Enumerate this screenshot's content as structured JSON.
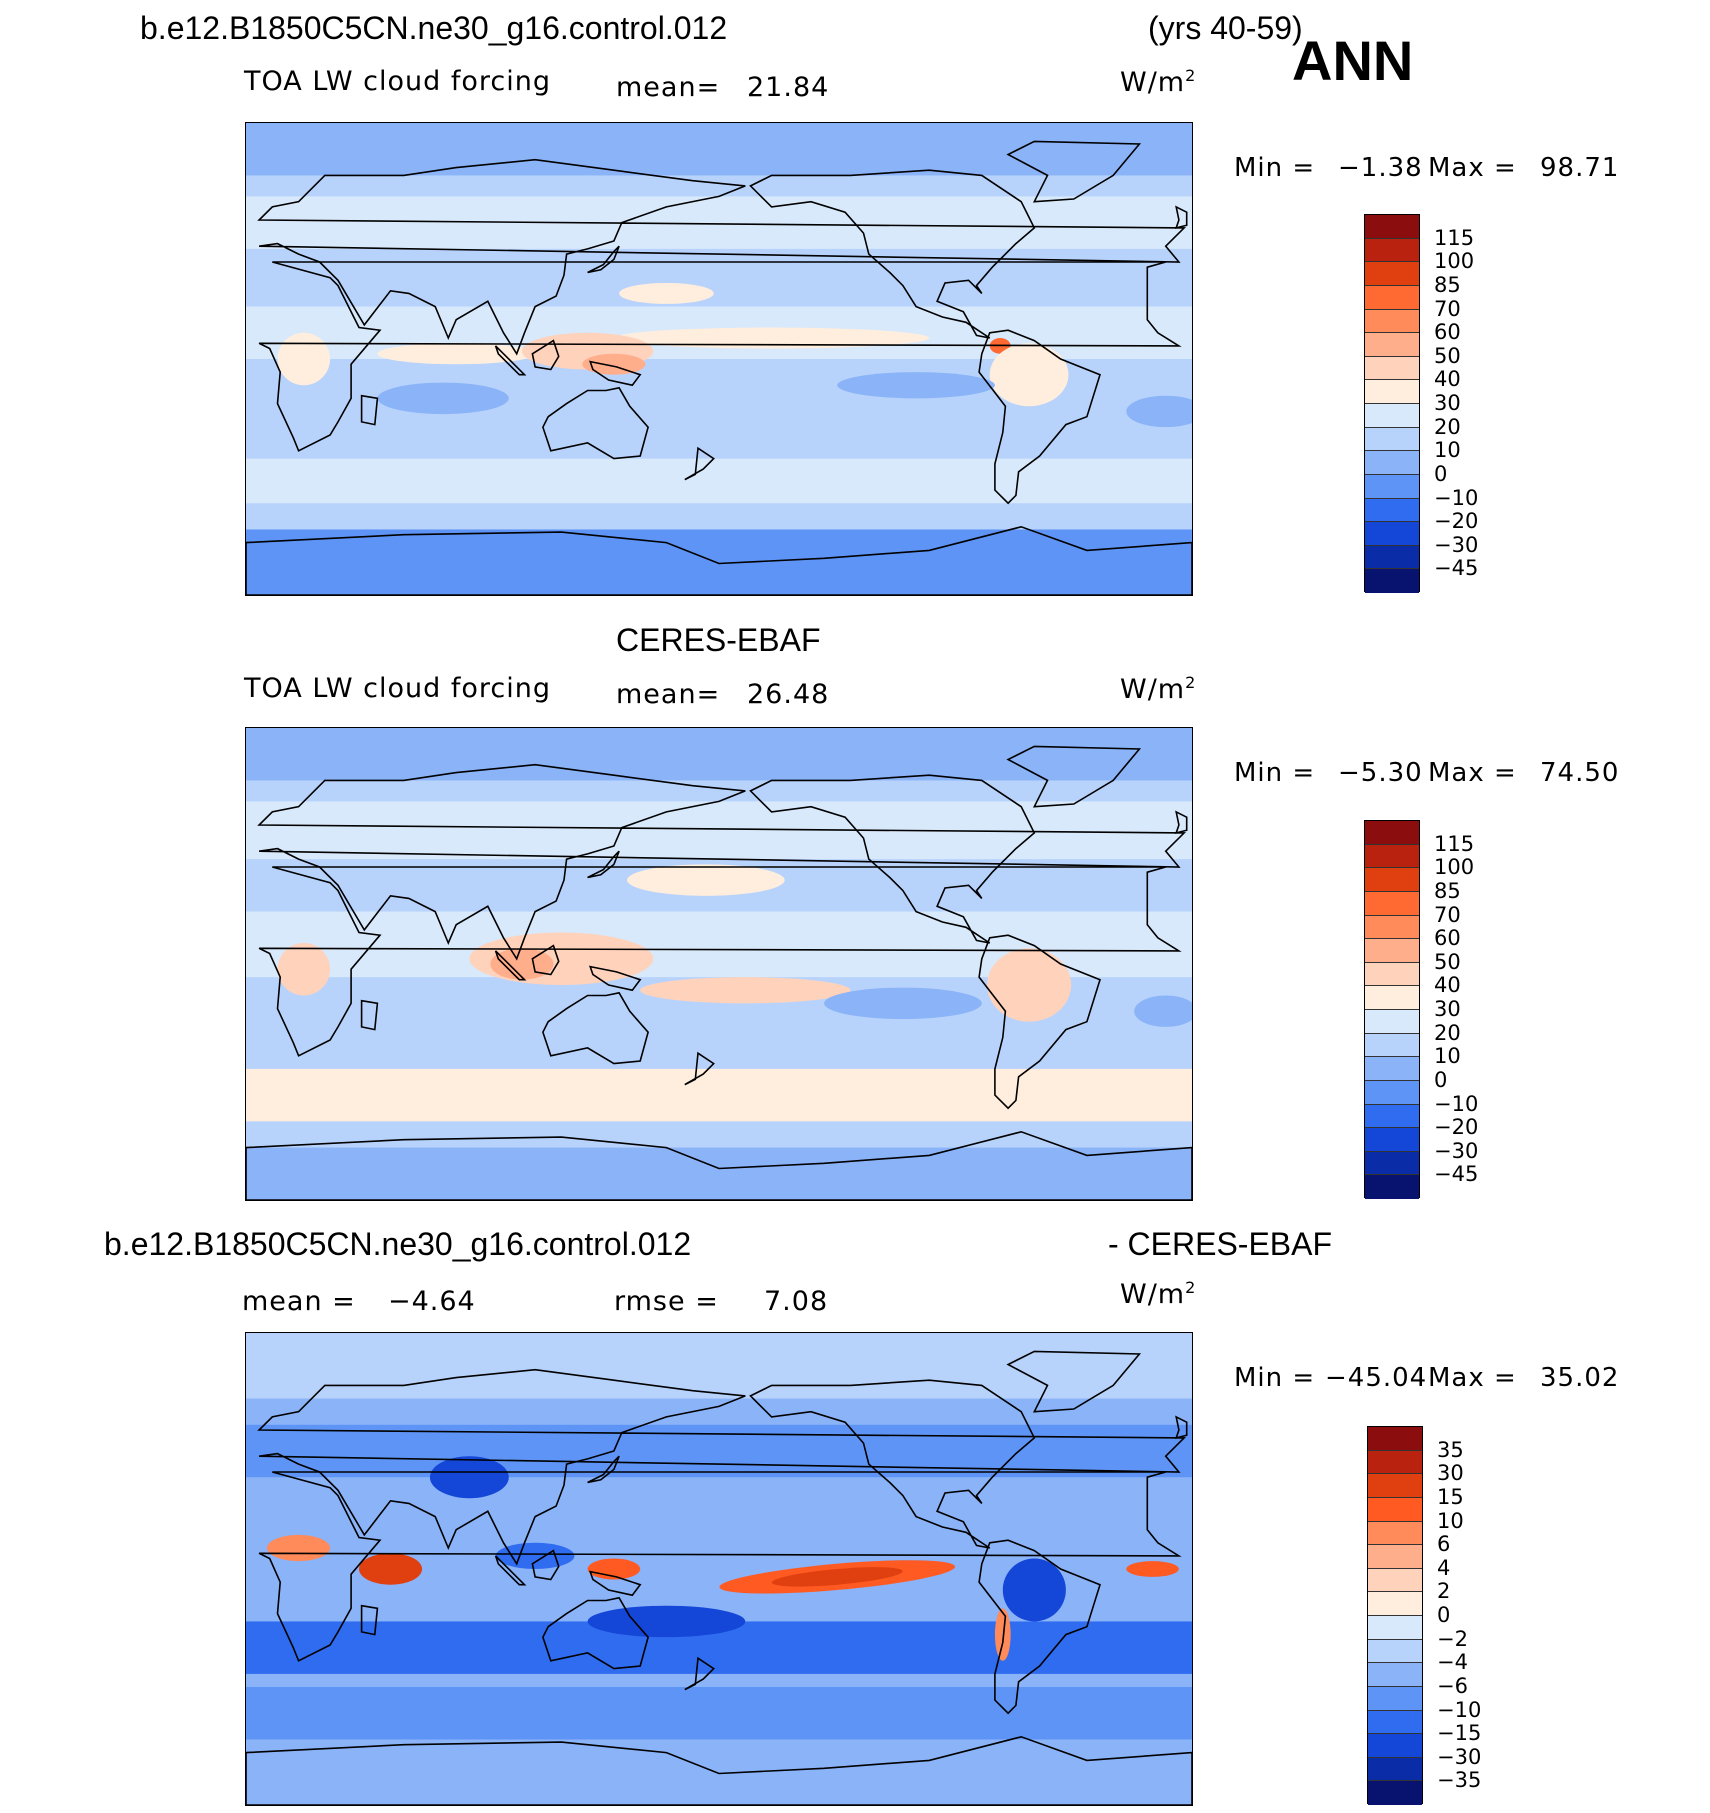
{
  "header": {
    "case_name": "b.e12.B1850C5CN.ne30_g16.control.012",
    "years": "(yrs 40-59)",
    "season": "ANN"
  },
  "panels": [
    {
      "title": "",
      "variable": "TOA LW cloud forcing",
      "mean_label": "mean=",
      "mean_value": "21.84",
      "units_base": "W/m",
      "units_sup": "2",
      "min_label": "Min =",
      "min_value": "−1.38",
      "max_label": "Max =",
      "max_value": "98.71",
      "colorbar_labels": [
        "115",
        "100",
        "85",
        "70",
        "60",
        "50",
        "40",
        "30",
        "20",
        "10",
        "0",
        "−10",
        "−20",
        "−30",
        "−45"
      ]
    },
    {
      "title": "CERES-EBAF",
      "variable": "TOA LW cloud forcing",
      "mean_label": "mean=",
      "mean_value": "26.48",
      "units_base": "W/m",
      "units_sup": "2",
      "min_label": "Min =",
      "min_value": "−5.30",
      "max_label": "Max =",
      "max_value": "74.50",
      "colorbar_labels": [
        "115",
        "100",
        "85",
        "70",
        "60",
        "50",
        "40",
        "30",
        "20",
        "10",
        "0",
        "−10",
        "−20",
        "−30",
        "−45"
      ]
    },
    {
      "title_left": "b.e12.B1850C5CN.ne30_g16.control.012",
      "title_right": "- CERES-EBAF",
      "mean_label": "mean =",
      "mean_value": "−4.64",
      "rmse_label": "rmse =",
      "rmse_value": "7.08",
      "units_base": "W/m",
      "units_sup": "2",
      "min_label": "Min =",
      "min_value": "−45.04",
      "max_label": "Max =",
      "max_value": "35.02",
      "colorbar_labels": [
        "35",
        "30",
        "15",
        "10",
        "6",
        "4",
        "2",
        "0",
        "−2",
        "−4",
        "−6",
        "−10",
        "−15",
        "−30",
        "−35"
      ]
    }
  ],
  "colors": {
    "abs_scale": [
      "#8b0d0d",
      "#b8220f",
      "#e0400f",
      "#ff6a33",
      "#ff8a5a",
      "#ffae8c",
      "#ffd2bb",
      "#ffeedd",
      "#d8e9fb",
      "#b8d3fb",
      "#8ab3f8",
      "#5e94f5",
      "#2f6cf0",
      "#1446d8",
      "#0a2ca6",
      "#07136e"
    ],
    "diff_scale": [
      "#8b0d0d",
      "#b8220f",
      "#e0400f",
      "#ff5a22",
      "#ff8a5a",
      "#ffae8c",
      "#ffd2bb",
      "#ffeedd",
      "#d8e9fb",
      "#b8d3fb",
      "#8ab3f8",
      "#5e94f5",
      "#2f6cf0",
      "#1446d8",
      "#0a2ca6",
      "#07136e"
    ]
  },
  "chart_data": [
    {
      "type": "heatmap",
      "title": "b.e12.B1850C5CN.ne30_g16.control.012",
      "variable": "TOA LW cloud forcing",
      "units": "W/m2",
      "mean": 21.84,
      "min": -1.38,
      "max": 98.71,
      "levels": [
        -45,
        -30,
        -20,
        -10,
        0,
        10,
        20,
        30,
        40,
        50,
        60,
        70,
        85,
        100,
        115
      ],
      "projection": "cylindrical equidistant, centered 180",
      "features": [
        "max over Maritime Continent / W Pacific (60-85)",
        "ITCZ band 40-50",
        "Colombia/Panama max ~85"
      ]
    },
    {
      "type": "heatmap",
      "title": "CERES-EBAF",
      "variable": "TOA LW cloud forcing",
      "units": "W/m2",
      "mean": 26.48,
      "min": -5.3,
      "max": 74.5,
      "levels": [
        -45,
        -30,
        -20,
        -10,
        0,
        10,
        20,
        30,
        40,
        50,
        60,
        70,
        85,
        100,
        115
      ],
      "projection": "cylindrical equidistant, centered 180",
      "features": [
        "max over Indonesia/W Pacific (50-60)",
        "Amazon and Congo basins 40-50",
        "mid-latitude storm tracks 30-40"
      ]
    },
    {
      "type": "heatmap",
      "title": "b.e12.B1850C5CN.ne30_g16.control.012 - CERES-EBAF",
      "units": "W/m2",
      "mean": -4.64,
      "rmse": 7.08,
      "min": -45.04,
      "max": 35.02,
      "levels": [
        -35,
        -30,
        -15,
        -10,
        -6,
        -4,
        -2,
        0,
        2,
        4,
        6,
        10,
        15,
        30,
        35
      ],
      "projection": "cylindrical equidistant, centered 180",
      "features": [
        "positive bias E Pacific ITCZ (10-15)",
        "positive bias W Indian Ocean (10-15)",
        "negative bias S Pacific / Southern Ocean (-6 to -15)",
        "negative bias Amazon (-10 to -15)"
      ]
    }
  ]
}
